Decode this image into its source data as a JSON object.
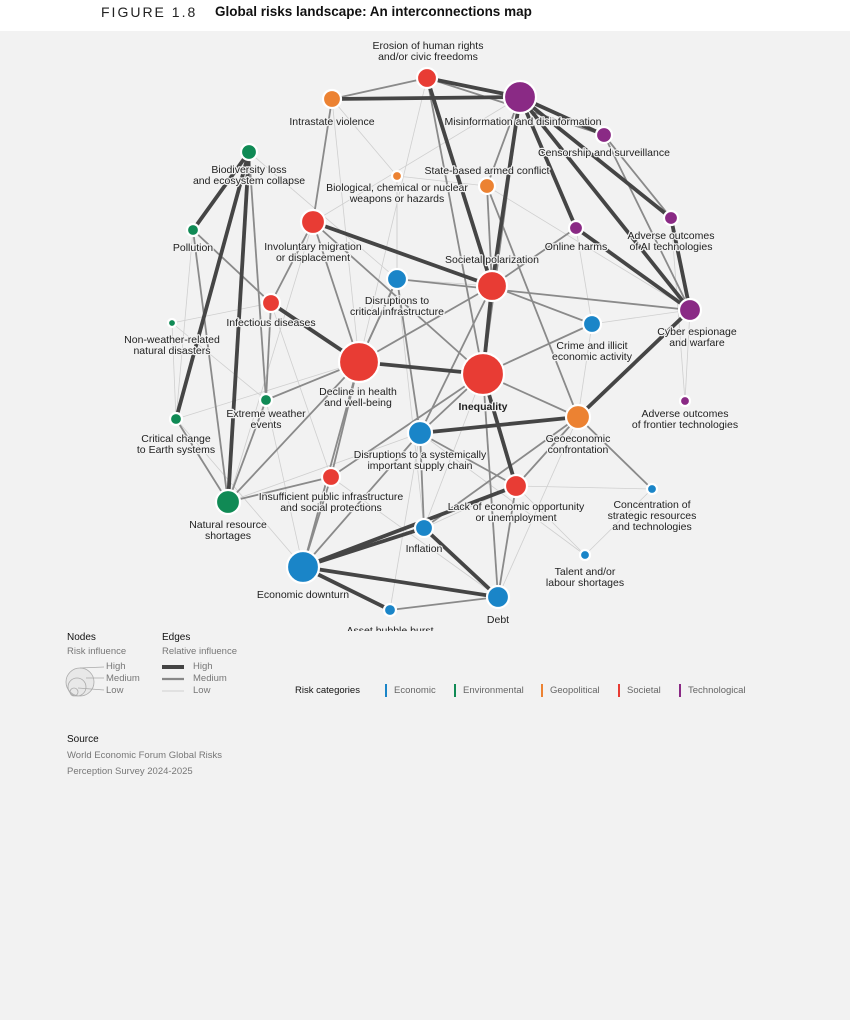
{
  "header": {
    "figure_number": "FIGURE 1.8",
    "title": "Global risks landscape: An interconnections map"
  },
  "categories": {
    "title": "Risk categories",
    "items": [
      {
        "key": "economic",
        "label": "Economic",
        "color": "#1a85c8"
      },
      {
        "key": "environmental",
        "label": "Environmental",
        "color": "#108a55"
      },
      {
        "key": "geopolitical",
        "label": "Geopolitical",
        "color": "#ec8232"
      },
      {
        "key": "societal",
        "label": "Societal",
        "color": "#e83c34"
      },
      {
        "key": "technological",
        "label": "Technological",
        "color": "#8a2a85"
      }
    ]
  },
  "legend": {
    "nodes_title": "Nodes",
    "nodes_sub": "Risk influence",
    "node_levels": [
      "High",
      "Medium",
      "Low"
    ],
    "edges_title": "Edges",
    "edges_sub": "Relative influence",
    "edge_levels": [
      "High",
      "Medium",
      "Low"
    ]
  },
  "source": {
    "title": "Source",
    "line1": "World Economic Forum Global Risks",
    "line2": "Perception Survey 2024-2025"
  },
  "nodes": [
    {
      "id": 1,
      "label": [
        "Erosion of human rights",
        "and/or civic freedoms"
      ],
      "category": "societal",
      "influence": "medium"
    },
    {
      "id": 2,
      "label": [
        "Misinformation and disinformation"
      ],
      "category": "technological",
      "influence": "high"
    },
    {
      "id": 3,
      "label": [
        "Intrastate violence"
      ],
      "category": "geopolitical",
      "influence": "low"
    },
    {
      "id": 4,
      "label": [
        "Censorship and surveillance"
      ],
      "category": "technological",
      "influence": "low"
    },
    {
      "id": 5,
      "label": [
        "Biodiversity loss",
        "and ecosystem collapse"
      ],
      "category": "environmental",
      "influence": "low"
    },
    {
      "id": 6,
      "label": [
        "Biological, chemical or nuclear",
        "weapons or hazards"
      ],
      "category": "geopolitical",
      "influence": "low"
    },
    {
      "id": 7,
      "label": [
        "State-based armed conflict"
      ],
      "category": "geopolitical",
      "influence": "low"
    },
    {
      "id": 8,
      "label": [
        "Pollution"
      ],
      "category": "environmental",
      "influence": "low"
    },
    {
      "id": 9,
      "label": [
        "Involuntary migration",
        "or displacement"
      ],
      "category": "societal",
      "influence": "medium"
    },
    {
      "id": 10,
      "label": [
        "Online harms"
      ],
      "category": "technological",
      "influence": "low"
    },
    {
      "id": 11,
      "label": [
        "Adverse outcomes",
        "of AI technologies"
      ],
      "category": "technological",
      "influence": "low"
    },
    {
      "id": 12,
      "label": [
        "Disruptions to",
        "critical infrastructure"
      ],
      "category": "economic",
      "influence": "medium"
    },
    {
      "id": 13,
      "label": [
        "Societal polarization"
      ],
      "category": "societal",
      "influence": "high"
    },
    {
      "id": 14,
      "label": [
        "Infectious diseases"
      ],
      "category": "societal",
      "influence": "low"
    },
    {
      "id": 15,
      "label": [
        "Non-weather-related",
        "natural disasters"
      ],
      "category": "environmental",
      "influence": "low"
    },
    {
      "id": 16,
      "label": [
        "Cyber espionage",
        "and warfare"
      ],
      "category": "technological",
      "influence": "medium"
    },
    {
      "id": 17,
      "label": [
        "Crime and illicit",
        "economic activity"
      ],
      "category": "economic",
      "influence": "low"
    },
    {
      "id": 18,
      "label": [
        "Decline in health",
        "and well-being"
      ],
      "category": "societal",
      "influence": "high"
    },
    {
      "id": 19,
      "label": [
        "Inequality"
      ],
      "category": "societal",
      "influence": "high",
      "bold": true
    },
    {
      "id": 20,
      "label": [
        "Extreme weather",
        "events"
      ],
      "category": "environmental",
      "influence": "low"
    },
    {
      "id": 21,
      "label": [
        "Critical change",
        "to Earth systems"
      ],
      "category": "environmental",
      "influence": "low"
    },
    {
      "id": 22,
      "label": [
        "Adverse outcomes",
        "of frontier technologies"
      ],
      "category": "technological",
      "influence": "low"
    },
    {
      "id": 23,
      "label": [
        "Geoeconomic",
        "confrontation"
      ],
      "category": "geopolitical",
      "influence": "medium"
    },
    {
      "id": 24,
      "label": [
        "Disruptions to a systemically",
        "important supply chain"
      ],
      "category": "economic",
      "influence": "medium"
    },
    {
      "id": 25,
      "label": [
        "Insufficient public infrastructure",
        "and social protections"
      ],
      "category": "societal",
      "influence": "low"
    },
    {
      "id": 26,
      "label": [
        "Lack of economic opportunity",
        "or unemployment"
      ],
      "category": "societal",
      "influence": "medium"
    },
    {
      "id": 27,
      "label": [
        "Concentration of",
        "strategic resources",
        "and technologies"
      ],
      "category": "economic",
      "influence": "low"
    },
    {
      "id": 28,
      "label": [
        "Natural resource",
        "shortages"
      ],
      "category": "environmental",
      "influence": "medium"
    },
    {
      "id": 29,
      "label": [
        "Inflation"
      ],
      "category": "economic",
      "influence": "low"
    },
    {
      "id": 30,
      "label": [
        "Talent and/or",
        "labour shortages"
      ],
      "category": "economic",
      "influence": "low"
    },
    {
      "id": 31,
      "label": [
        "Economic downturn"
      ],
      "category": "economic",
      "influence": "high"
    },
    {
      "id": 32,
      "label": [
        "Debt"
      ],
      "category": "economic",
      "influence": "medium"
    },
    {
      "id": 33,
      "label": [
        "Asset bubble burst"
      ],
      "category": "economic",
      "influence": "low"
    }
  ],
  "edges": [
    [
      1,
      2,
      3
    ],
    [
      3,
      2,
      3
    ],
    [
      1,
      13,
      3
    ],
    [
      2,
      13,
      3
    ],
    [
      2,
      4,
      3
    ],
    [
      2,
      10,
      3
    ],
    [
      2,
      16,
      3
    ],
    [
      2,
      11,
      3
    ],
    [
      10,
      16,
      3
    ],
    [
      11,
      16,
      3
    ],
    [
      4,
      11,
      2
    ],
    [
      2,
      7,
      2
    ],
    [
      1,
      3,
      2
    ],
    [
      1,
      4,
      2
    ],
    [
      5,
      8,
      3
    ],
    [
      5,
      28,
      3
    ],
    [
      5,
      21,
      3
    ],
    [
      8,
      28,
      2
    ],
    [
      5,
      20,
      2
    ],
    [
      21,
      28,
      2
    ],
    [
      15,
      21,
      1
    ],
    [
      20,
      28,
      2
    ],
    [
      8,
      14,
      2
    ],
    [
      9,
      13,
      3
    ],
    [
      9,
      18,
      2
    ],
    [
      3,
      9,
      2
    ],
    [
      9,
      14,
      2
    ],
    [
      14,
      18,
      3
    ],
    [
      18,
      19,
      3
    ],
    [
      13,
      19,
      3
    ],
    [
      13,
      18,
      2
    ],
    [
      12,
      18,
      2
    ],
    [
      12,
      24,
      2
    ],
    [
      12,
      16,
      2
    ],
    [
      19,
      26,
      3
    ],
    [
      19,
      24,
      2
    ],
    [
      19,
      25,
      2
    ],
    [
      19,
      32,
      2
    ],
    [
      19,
      9,
      2
    ],
    [
      19,
      1,
      2
    ],
    [
      19,
      17,
      2
    ],
    [
      13,
      17,
      2
    ],
    [
      13,
      7,
      2
    ],
    [
      13,
      10,
      2
    ],
    [
      24,
      23,
      3
    ],
    [
      23,
      16,
      3
    ],
    [
      23,
      19,
      2
    ],
    [
      23,
      27,
      2
    ],
    [
      23,
      7,
      2
    ],
    [
      23,
      26,
      2
    ],
    [
      31,
      32,
      3
    ],
    [
      31,
      29,
      3
    ],
    [
      31,
      26,
      3
    ],
    [
      31,
      33,
      3
    ],
    [
      29,
      32,
      3
    ],
    [
      33,
      32,
      2
    ],
    [
      31,
      24,
      2
    ],
    [
      31,
      25,
      2
    ],
    [
      31,
      18,
      2
    ],
    [
      29,
      24,
      2
    ],
    [
      26,
      32,
      2
    ],
    [
      26,
      30,
      1
    ],
    [
      29,
      23,
      2
    ],
    [
      18,
      25,
      2
    ],
    [
      18,
      20,
      2
    ],
    [
      18,
      21,
      1
    ],
    [
      18,
      12,
      2
    ],
    [
      25,
      28,
      2
    ],
    [
      20,
      14,
      2
    ],
    [
      28,
      18,
      2
    ],
    [
      6,
      3,
      1
    ],
    [
      6,
      7,
      1
    ],
    [
      6,
      12,
      1
    ],
    [
      17,
      16,
      1
    ],
    [
      17,
      23,
      1
    ],
    [
      22,
      16,
      1
    ],
    [
      22,
      11,
      1
    ],
    [
      27,
      30,
      1
    ],
    [
      12,
      6,
      1
    ],
    [
      14,
      15,
      1
    ],
    [
      15,
      20,
      1
    ],
    [
      8,
      21,
      1
    ],
    [
      24,
      26,
      2
    ],
    [
      24,
      28,
      1
    ],
    [
      9,
      28,
      1
    ],
    [
      1,
      18,
      1
    ],
    [
      2,
      19,
      2
    ],
    [
      2,
      9,
      1
    ],
    [
      3,
      18,
      1
    ],
    [
      4,
      16,
      2
    ],
    [
      7,
      16,
      1
    ],
    [
      17,
      19,
      1
    ],
    [
      10,
      17,
      1
    ],
    [
      13,
      12,
      1
    ],
    [
      24,
      33,
      1
    ],
    [
      25,
      32,
      1
    ],
    [
      29,
      19,
      1
    ],
    [
      27,
      26,
      1
    ],
    [
      30,
      24,
      1
    ],
    [
      31,
      21,
      1
    ],
    [
      5,
      12,
      1
    ],
    [
      14,
      25,
      1
    ],
    [
      20,
      31,
      1
    ],
    [
      12,
      29,
      1
    ],
    [
      13,
      24,
      2
    ],
    [
      23,
      32,
      1
    ],
    [
      26,
      29,
      1
    ]
  ]
}
